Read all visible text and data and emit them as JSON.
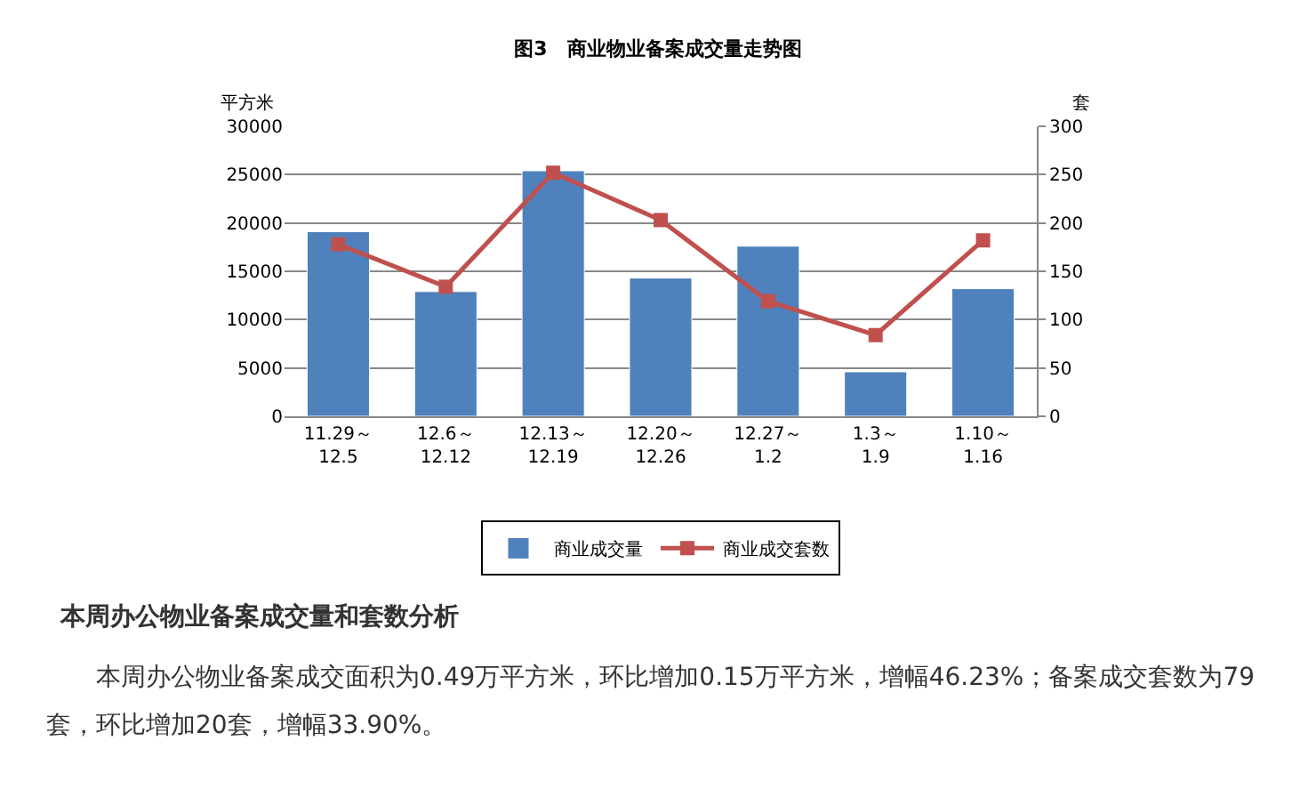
{
  "chart_data": {
    "type": "bar",
    "title": "图3　商业物业备案成交量走势图",
    "ylabel": "平方米",
    "y2label": "套",
    "categories": [
      "11.29～\n12.5",
      "12.6～\n12.12",
      "12.13～\n12.19",
      "12.20～\n12.26",
      "12.27～\n1.2",
      "1.3～\n1.9",
      "1.10～\n1.16"
    ],
    "series": [
      {
        "name": "商业成交量",
        "color": "#4f81bd",
        "values": [
          19100,
          12900,
          25400,
          14300,
          17600,
          4600,
          13200
        ]
      },
      {
        "name": "商业成交套数",
        "type": "line",
        "axis": "y2",
        "color": "#c0504d",
        "marker": "square",
        "values": [
          178,
          134,
          252,
          203,
          119,
          84,
          182
        ]
      }
    ],
    "ylim": [
      0,
      30000
    ],
    "yticks": [
      0,
      5000,
      10000,
      15000,
      20000,
      25000,
      30000
    ],
    "y2lim": [
      0,
      300
    ],
    "y2ticks": [
      0,
      50,
      100,
      150,
      200,
      250,
      300
    ],
    "grid": "y",
    "legend": "bottom",
    "annotations": [
      "本周办公物业备案成交量和套数分析",
      "本周办公物业备案成交面积为0.49万平方米，环比增加0.15万平方米，增幅46.23%；备案成交套数为79套，环比增加20套，增幅33.90%。"
    ]
  }
}
